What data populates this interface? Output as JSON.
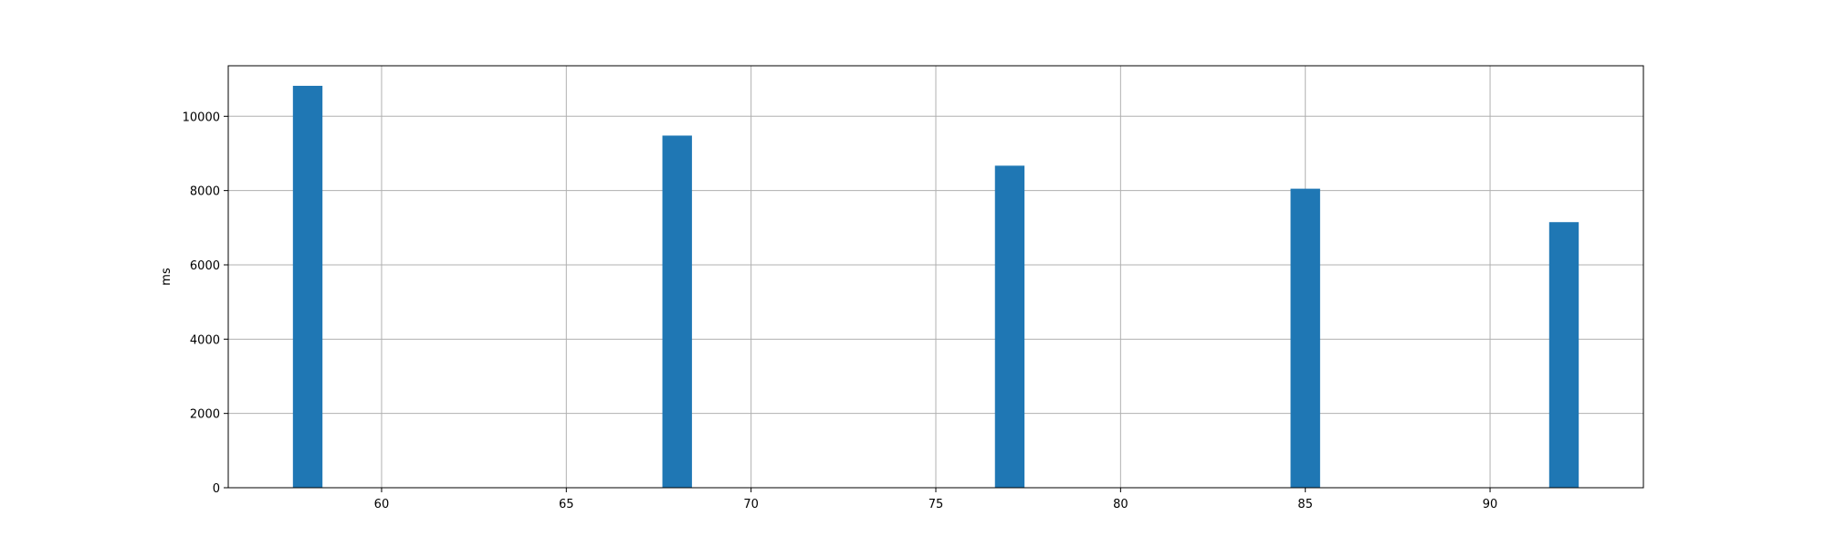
{
  "chart_data": {
    "type": "bar",
    "x": [
      58,
      68,
      77,
      85,
      92
    ],
    "values": [
      10820,
      9480,
      8670,
      8050,
      7150
    ],
    "bar_width": 0.8,
    "xlim": [
      55.85,
      94.15
    ],
    "ylim": [
      0,
      11360
    ],
    "xticks": [
      60,
      65,
      70,
      75,
      80,
      85,
      90
    ],
    "yticks": [
      0,
      2000,
      4000,
      6000,
      8000,
      10000
    ],
    "xlabel": "",
    "ylabel": "ms",
    "title": "",
    "grid": true,
    "colors": {
      "bar": "#1f77b4",
      "grid": "#b0b0b0",
      "axes": "#000000"
    }
  }
}
